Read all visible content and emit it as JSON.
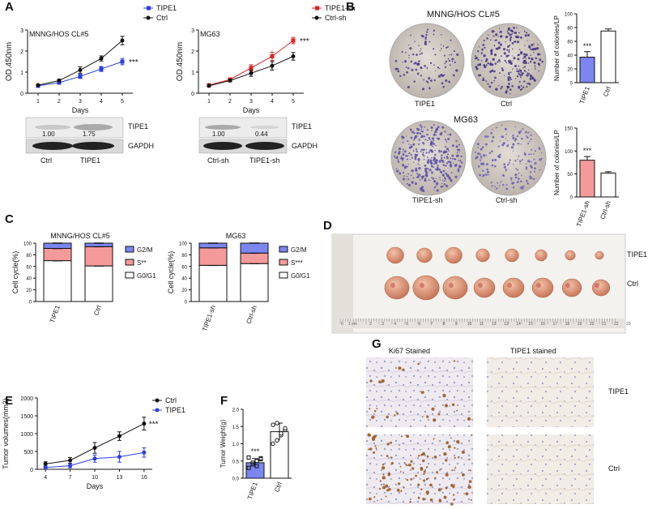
{
  "panel_letters": {
    "a": "A",
    "b": "B",
    "c": "C",
    "d": "D",
    "e": "E",
    "f": "F",
    "g": "G"
  },
  "colors": {
    "blue": "#2b3de0",
    "red": "#e02020",
    "black": "#111111",
    "bar_blue": "#7c86f0",
    "bar_red": "#f49a9a",
    "tumor": "#d98a6a"
  },
  "panel_A": {
    "blot_left": {
      "label_protein": "TIPE1",
      "label_loading": "GAPDH",
      "ratios": [
        "1.00",
        "1.75"
      ],
      "lanes": [
        "Ctrl",
        "TIPE1"
      ]
    },
    "blot_right": {
      "label_protein": "TIPE1",
      "label_loading": "GAPDH",
      "ratios": [
        "1.00",
        "0.44"
      ],
      "lanes": [
        "Ctrl-sh",
        "TIPE1-sh"
      ]
    }
  },
  "panel_B": {
    "title_top": "MNNG/HOS CL#5",
    "title_bottom": "MG63",
    "dish_labels": [
      "TIPE1",
      "Ctrl",
      "TIPE1-sh",
      "Ctrl-sh"
    ]
  },
  "panel_D": {
    "row_labels": [
      "TIPE1",
      "Ctrl"
    ],
    "ruler_start": "0",
    "ruler_unit": "1 cm",
    "ruler_numbers": [
      "2",
      "3",
      "4",
      "5",
      "6",
      "7",
      "8",
      "9",
      "10",
      "11",
      "12",
      "13",
      "14",
      "15",
      "16",
      "17",
      "18",
      "19",
      "20",
      "21",
      "22",
      "23"
    ]
  },
  "panel_G": {
    "col_labels": [
      "Ki67 Stained",
      "TIPE1 stained"
    ],
    "row_labels": [
      "TIPE1",
      "Ctrl"
    ]
  },
  "chart_data": [
    {
      "id": "A_left",
      "type": "line",
      "title": "MNNG/HOS CL#5",
      "xlabel": "Days",
      "ylabel": "OD.450nm",
      "x": [
        1,
        2,
        3,
        4,
        5
      ],
      "xlim": [
        0.5,
        5.5
      ],
      "ylim": [
        0,
        3
      ],
      "yticks": [
        0,
        1,
        2,
        3
      ],
      "xticks": [
        1,
        2,
        3,
        4,
        5
      ],
      "series": [
        {
          "name": "TIPE1",
          "color": "#2b3de0",
          "marker": "square",
          "values": [
            0.35,
            0.5,
            0.8,
            1.15,
            1.5
          ],
          "errors": [
            0.04,
            0.05,
            0.1,
            0.12,
            0.15
          ]
        },
        {
          "name": "Ctrl",
          "color": "#111111",
          "marker": "circle",
          "values": [
            0.38,
            0.6,
            1.1,
            1.65,
            2.5
          ],
          "errors": [
            0.04,
            0.06,
            0.15,
            0.12,
            0.2
          ]
        }
      ],
      "annotation": "***"
    },
    {
      "id": "A_right",
      "type": "line",
      "title": "MG63",
      "xlabel": "Days",
      "ylabel": "OD.450nm",
      "x": [
        1,
        2,
        3,
        4,
        5
      ],
      "xlim": [
        0.5,
        5.5
      ],
      "ylim": [
        0,
        3
      ],
      "yticks": [
        0,
        1,
        2,
        3
      ],
      "xticks": [
        1,
        2,
        3,
        4,
        5
      ],
      "series": [
        {
          "name": "TIPE1-sh",
          "color": "#e02020",
          "marker": "square",
          "values": [
            0.38,
            0.65,
            1.2,
            1.75,
            2.5
          ],
          "errors": [
            0.05,
            0.08,
            0.15,
            0.2,
            0.15
          ]
        },
        {
          "name": "Ctrl-sh",
          "color": "#111111",
          "marker": "circle",
          "values": [
            0.35,
            0.6,
            0.95,
            1.3,
            1.75
          ],
          "errors": [
            0.05,
            0.06,
            0.15,
            0.2,
            0.18
          ]
        }
      ],
      "annotation": "***"
    },
    {
      "id": "B_top",
      "type": "bar",
      "ylabel": "Number of colonies/LP",
      "categories": [
        "TIPE1",
        "Ctrl"
      ],
      "values": [
        37,
        75
      ],
      "errors": [
        8,
        3
      ],
      "colors": [
        "#7c86f0",
        "#ffffff"
      ],
      "ylim": [
        0,
        100
      ],
      "yticks": [
        0,
        20,
        40,
        60,
        80,
        100
      ],
      "annotation": "***"
    },
    {
      "id": "B_bottom",
      "type": "bar",
      "ylabel": "Number of colonies/LP",
      "categories": [
        "TIPE1-sh",
        "Ctrl-sh"
      ],
      "values": [
        80,
        52
      ],
      "errors": [
        8,
        3
      ],
      "colors": [
        "#f49a9a",
        "#ffffff"
      ],
      "ylim": [
        0,
        150
      ],
      "yticks": [
        0,
        50,
        100,
        150
      ],
      "annotation": "***"
    },
    {
      "id": "C_left",
      "type": "bar",
      "title": "MNNG/HOS CL#5",
      "ylabel": "Cell cycle(%)",
      "categories": [
        "TIPE1",
        "Ctrl"
      ],
      "series": [
        {
          "name": "G0/G1",
          "color": "#ffffff",
          "values": [
            70,
            61
          ]
        },
        {
          "name": "S**",
          "color": "#f49a9a",
          "values": [
            21,
            33
          ]
        },
        {
          "name": "G2/M",
          "color": "#7c86f0",
          "values": [
            9,
            6
          ]
        }
      ],
      "ylim": [
        0,
        100
      ],
      "yticks": [
        0,
        20,
        40,
        60,
        80,
        100
      ]
    },
    {
      "id": "C_right",
      "type": "bar",
      "title": "MG63",
      "ylabel": "Cell cycle(%)",
      "categories": [
        "TIPE1-sh",
        "Ctrl-sh"
      ],
      "series": [
        {
          "name": "G0/G1",
          "color": "#ffffff",
          "values": [
            62,
            65
          ]
        },
        {
          "name": "S***",
          "color": "#f49a9a",
          "values": [
            30,
            18
          ]
        },
        {
          "name": "G2/M",
          "color": "#7c86f0",
          "values": [
            8,
            17
          ]
        }
      ],
      "ylim": [
        0,
        100
      ],
      "yticks": [
        0,
        20,
        40,
        60,
        80,
        100
      ]
    },
    {
      "id": "E",
      "type": "line",
      "xlabel": "Days",
      "ylabel": "Tumor volumes(mm3)",
      "x": [
        4,
        7,
        10,
        13,
        16
      ],
      "xlim": [
        3,
        17
      ],
      "ylim": [
        0,
        2000
      ],
      "yticks": [
        0,
        500,
        1000,
        1500,
        2000
      ],
      "xticks": [
        4,
        7,
        10,
        13,
        16
      ],
      "series": [
        {
          "name": "Ctrl",
          "color": "#111111",
          "marker": "circle",
          "values": [
            150,
            250,
            600,
            930,
            1280
          ],
          "errors": [
            60,
            80,
            150,
            120,
            180
          ]
        },
        {
          "name": "TIPE1",
          "color": "#2b3de0",
          "marker": "circle",
          "values": [
            50,
            100,
            300,
            350,
            470
          ],
          "errors": [
            40,
            60,
            100,
            150,
            130
          ]
        }
      ],
      "annotation": "***"
    },
    {
      "id": "F",
      "type": "scatter",
      "ylabel": "Tumor Weight(g)",
      "categories": [
        "TIPE1",
        "Ctrl"
      ],
      "values": [
        0.45,
        1.35
      ],
      "errors": [
        0.12,
        0.25
      ],
      "colors": [
        "#7c86f0",
        "#ffffff"
      ],
      "points": [
        [
          0.3,
          0.4,
          0.5,
          0.55,
          0.6,
          0.45,
          0.35,
          0.58
        ],
        [
          1.0,
          1.1,
          1.25,
          1.4,
          1.55,
          1.6,
          1.3,
          1.45
        ]
      ],
      "ylim": [
        0,
        2
      ],
      "yticks": [
        0,
        0.5,
        1.0,
        1.5,
        2.0
      ],
      "annotation": "***"
    }
  ]
}
